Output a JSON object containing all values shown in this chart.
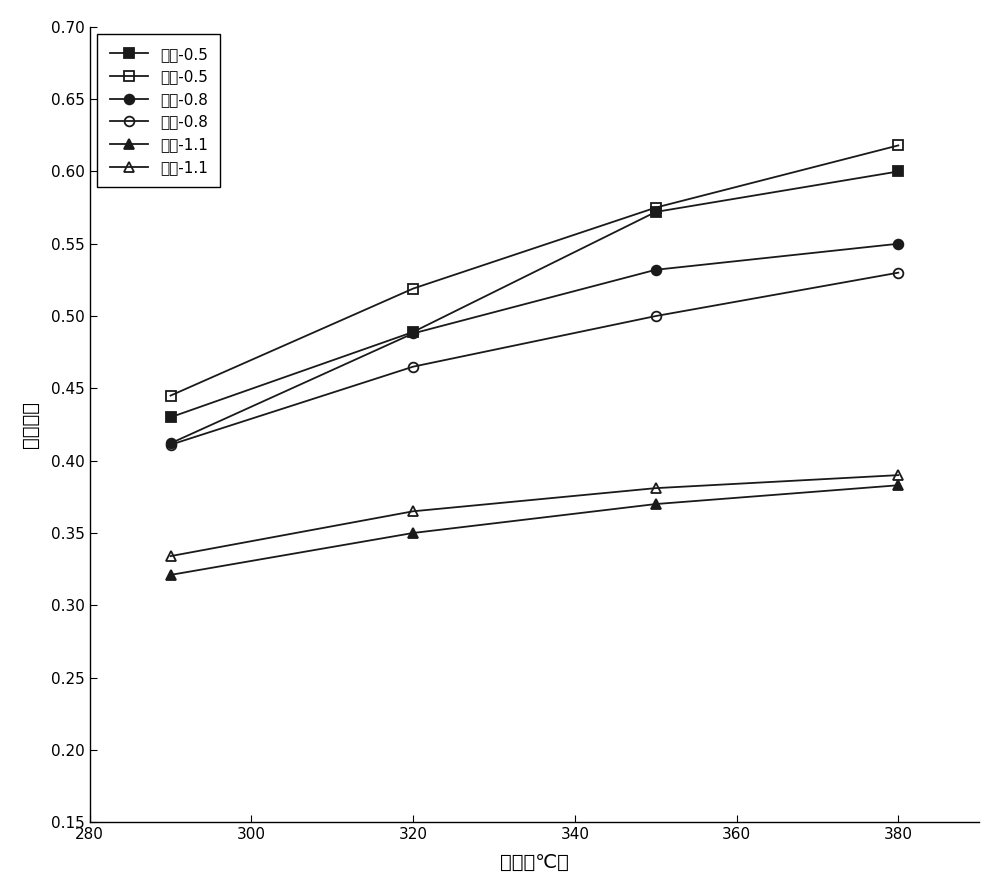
{
  "x": [
    290,
    320,
    350,
    380
  ],
  "series": [
    {
      "label": "实测-0.5",
      "values": [
        0.43,
        0.489,
        0.572,
        0.6
      ],
      "color": "#1a1a1a",
      "marker": "s",
      "fillstyle": "full",
      "linestyle": "-"
    },
    {
      "label": "模拟-0.5",
      "values": [
        0.445,
        0.519,
        0.575,
        0.618
      ],
      "color": "#1a1a1a",
      "marker": "s",
      "fillstyle": "none",
      "linestyle": "-"
    },
    {
      "label": "实测-0.8",
      "values": [
        0.412,
        0.488,
        0.532,
        0.55
      ],
      "color": "#1a1a1a",
      "marker": "o",
      "fillstyle": "full",
      "linestyle": "-"
    },
    {
      "label": "模拟-0.8",
      "values": [
        0.411,
        0.465,
        0.5,
        0.53
      ],
      "color": "#1a1a1a",
      "marker": "o",
      "fillstyle": "none",
      "linestyle": "-"
    },
    {
      "label": "实测-1.1",
      "values": [
        0.321,
        0.35,
        0.37,
        0.383
      ],
      "color": "#1a1a1a",
      "marker": "^",
      "fillstyle": "full",
      "linestyle": "-"
    },
    {
      "label": "模拟-1.1",
      "values": [
        0.334,
        0.365,
        0.381,
        0.39
      ],
      "color": "#1a1a1a",
      "marker": "^",
      "fillstyle": "none",
      "linestyle": "-"
    }
  ],
  "xlabel": "温度（℃）",
  "ylabel": "脱理效率",
  "xlim": [
    280,
    390
  ],
  "ylim": [
    0.15,
    0.7
  ],
  "xticks": [
    280,
    300,
    320,
    340,
    360,
    380
  ],
  "yticks": [
    0.15,
    0.2,
    0.25,
    0.3,
    0.35,
    0.4,
    0.45,
    0.5,
    0.55,
    0.6,
    0.65,
    0.7
  ],
  "background_color": "#ffffff",
  "plot_bg_color": "#ffffff"
}
